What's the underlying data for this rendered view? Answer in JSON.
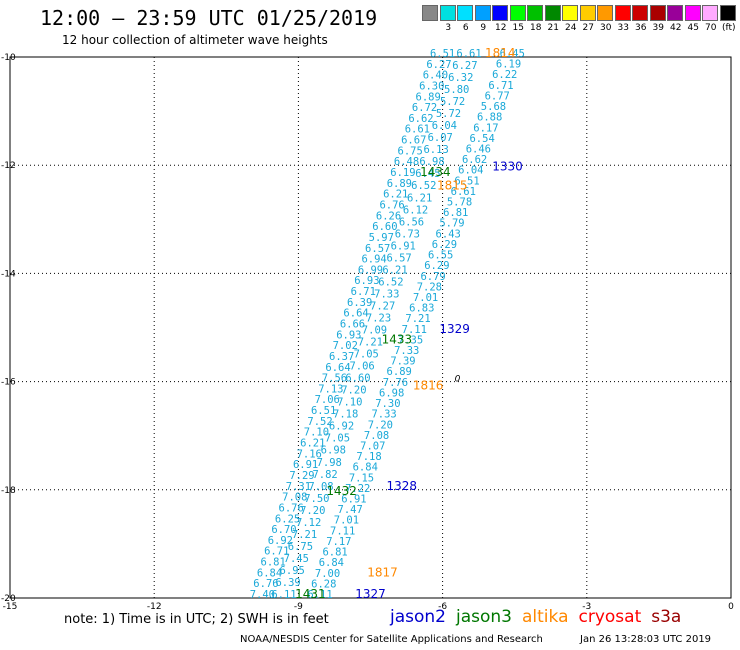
{
  "header": {
    "title": "12:00 – 23:59 UTC 01/25/2019",
    "subtitle": "12 hour collection of altimeter wave heights"
  },
  "legend": {
    "unit": "(ft)",
    "items": [
      {
        "label": "",
        "color": "#888888"
      },
      {
        "label": "3",
        "color": "#00e0e0"
      },
      {
        "label": "6",
        "color": "#00e0ff"
      },
      {
        "label": "9",
        "color": "#00a0ff"
      },
      {
        "label": "12",
        "color": "#0000ff"
      },
      {
        "label": "15",
        "color": "#00ff00"
      },
      {
        "label": "18",
        "color": "#00c000"
      },
      {
        "label": "21",
        "color": "#008800"
      },
      {
        "label": "24",
        "color": "#ffff00"
      },
      {
        "label": "27",
        "color": "#ffcc00"
      },
      {
        "label": "30",
        "color": "#ff9900"
      },
      {
        "label": "33",
        "color": "#ff0000"
      },
      {
        "label": "36",
        "color": "#cc0000"
      },
      {
        "label": "39",
        "color": "#aa0000"
      },
      {
        "label": "42",
        "color": "#990099"
      },
      {
        "label": "45",
        "color": "#ff00ff"
      },
      {
        "label": "70",
        "color": "#ffaaff"
      },
      {
        "label": "",
        "color": "#000000"
      }
    ]
  },
  "map": {
    "x_range": [
      -15,
      0
    ],
    "y_range": [
      -20,
      -10
    ],
    "x_ticks": [
      "-15",
      "-12",
      "-9",
      "-6",
      "-3",
      "0"
    ],
    "y_ticks": [
      "-10",
      "-12",
      "-14",
      "-16",
      "-18",
      "-20"
    ],
    "colors": {
      "swh": "#1aa8d8",
      "jason2": "#0000cc",
      "jason3": "#007700",
      "altika": "#ff8800"
    },
    "tracks": [
      {
        "name": "track-a",
        "start": [
          -9.75,
          -20.0
        ],
        "end": [
          -6.0,
          -10.0
        ],
        "values": [
          "7.40",
          "6.76",
          "6.84",
          "6.81",
          "6.71",
          "6.92",
          "6.70",
          "6.25",
          "6.76",
          "7.08",
          "7.31",
          "7.29",
          "6.91",
          "7.16",
          "6.21",
          "7.10",
          "7.52",
          "6.51",
          "7.06",
          "7.13",
          "7.56",
          "6.64",
          "6.37",
          "7.02",
          "6.93",
          "6.66",
          "6.64",
          "6.39",
          "6.71",
          "6.93",
          "6.99",
          "6.94",
          "6.57",
          "5.97",
          "6.60",
          "6.26",
          "6.76",
          "6.21",
          "6.89",
          "6.19",
          "6.48",
          "6.75",
          "6.67",
          "6.61",
          "6.62",
          "6.72",
          "6.89",
          "6.30",
          "6.40",
          "6.27",
          "6.51"
        ]
      },
      {
        "name": "track-b",
        "start": [
          -9.3,
          -20.0
        ],
        "end": [
          -5.45,
          -10.0
        ],
        "values": [
          "6.11",
          "6.39",
          "6.95",
          "7.45",
          "6.75",
          "7.21",
          "7.12",
          "7.20",
          "7.50",
          "7.08",
          "7.82",
          "7.98",
          "6.98",
          "7.05",
          "6.92",
          "7.18",
          "7.10",
          "7.20",
          "6.60",
          "7.06",
          "7.05",
          "7.21",
          "7.09",
          "7.23",
          "7.27",
          "7.33",
          "6.52",
          "6.21",
          "6.57",
          "6.91",
          "6.73",
          "6.56",
          "6.12",
          "6.21",
          "6.52",
          "6.45",
          "6.98",
          "6.13",
          "6.07",
          "6.04",
          "5.72",
          "5.72",
          "5.80",
          "6.32",
          "6.27",
          "6.61"
        ]
      },
      {
        "name": "track-c",
        "start": [
          -8.55,
          -20.0
        ],
        "end": [
          -4.55,
          -10.0
        ],
        "values": [
          "6.11",
          "6.28",
          "7.00",
          "6.84",
          "6.81",
          "7.17",
          "7.11",
          "7.01",
          "7.47",
          "6.91",
          "7.22",
          "7.15",
          "6.84",
          "7.18",
          "7.07",
          "7.08",
          "7.20",
          "7.33",
          "7.30",
          "6.98",
          "7.76",
          "6.89",
          "7.39",
          "7.33",
          "7.35",
          "7.11",
          "7.21",
          "6.83",
          "7.01",
          "7.28",
          "6.79",
          "6.29",
          "6.55",
          "6.29",
          "6.43",
          "5.79",
          "6.81",
          "5.78",
          "6.61",
          "6.51",
          "6.04",
          "6.62",
          "6.46",
          "6.54",
          "6.17",
          "6.88",
          "5.68",
          "6.77",
          "6.71",
          "6.22",
          "6.19",
          "6.45"
        ]
      }
    ],
    "labels": [
      {
        "name": "jason2",
        "text": "1330",
        "x": -4.65,
        "y": -12.1
      },
      {
        "name": "jason2",
        "text": "1329",
        "x": -5.75,
        "y": -15.1
      },
      {
        "name": "jason2",
        "text": "1328",
        "x": -6.85,
        "y": -18.0
      },
      {
        "name": "jason2",
        "text": "1327",
        "x": -7.5,
        "y": -20.0
      },
      {
        "name": "jason3",
        "text": "1434",
        "x": -6.15,
        "y": -12.2
      },
      {
        "name": "jason3",
        "text": "1433",
        "x": -6.95,
        "y": -15.3
      },
      {
        "name": "jason3",
        "text": "1432",
        "x": -8.1,
        "y": -18.1
      },
      {
        "name": "jason3",
        "text": "1431",
        "x": -8.75,
        "y": -20.0
      },
      {
        "name": "altika",
        "text": "1814",
        "x": -4.8,
        "y": -10.0
      },
      {
        "name": "altika",
        "text": "1815",
        "x": -5.8,
        "y": -12.45
      },
      {
        "name": "altika",
        "text": "1816",
        "x": -6.3,
        "y": -16.15
      },
      {
        "name": "altika",
        "text": "1817",
        "x": -7.25,
        "y": -19.6
      }
    ],
    "zero_marker": {
      "text": "0",
      "x": -5.75,
      "y": -16.0
    }
  },
  "note": "note: 1) Time is in UTC; 2) SWH is in feet",
  "satellites": [
    {
      "label": "jason2",
      "color": "#0000cc"
    },
    {
      "label": "jason3",
      "color": "#007700"
    },
    {
      "label": "altika",
      "color": "#ff8800"
    },
    {
      "label": "cryosat",
      "color": "#ff0000"
    },
    {
      "label": "s3a",
      "color": "#990000"
    }
  ],
  "footer": "NOAA/NESDIS Center for Satellite Applications and Research",
  "timestamp": "Jan 26 13:28:03 UTC 2019"
}
